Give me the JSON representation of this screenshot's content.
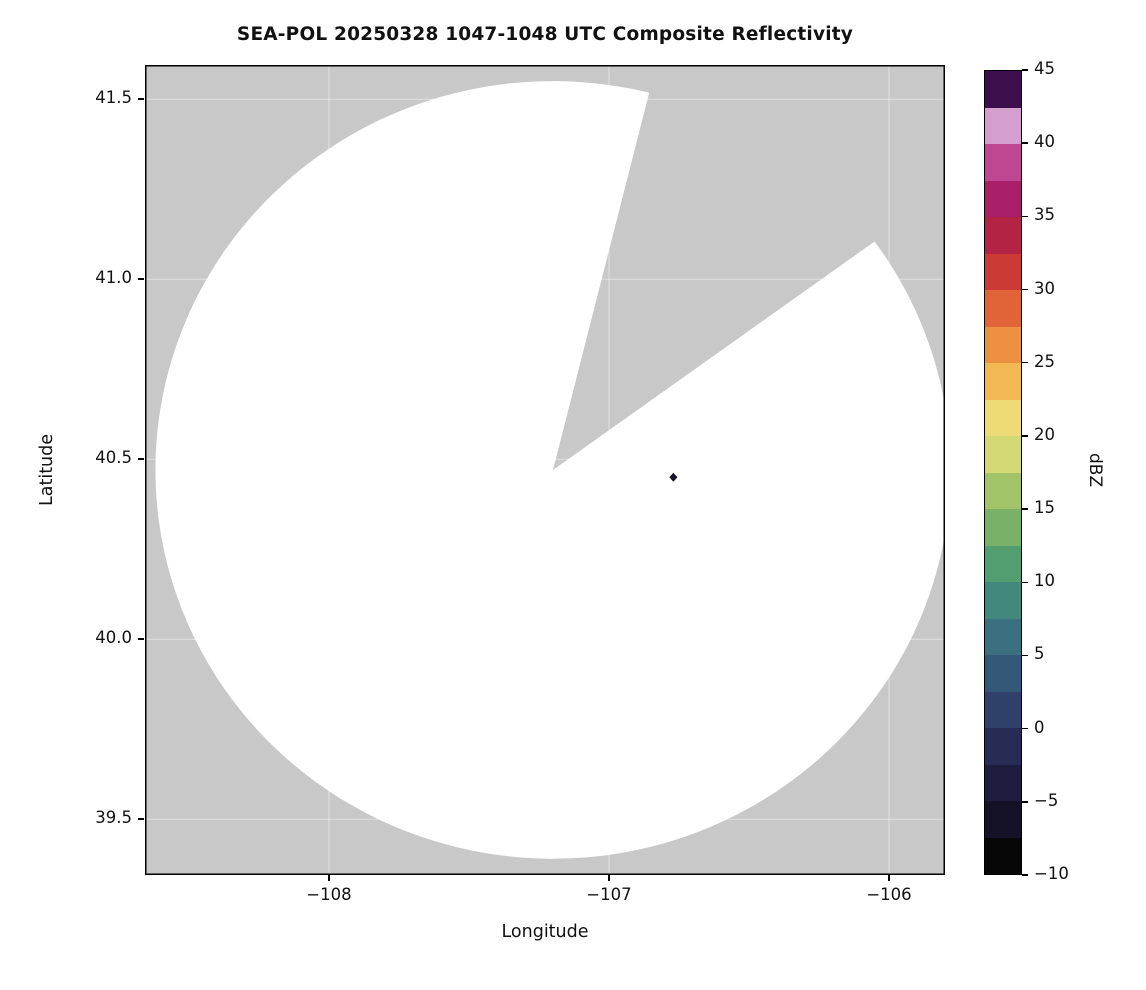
{
  "figure": {
    "title": "SEA-POL 20250328 1047-1048 UTC Composite Reflectivity",
    "xlabel": "Longitude",
    "ylabel": "Latitude",
    "colorbar_label": "dBZ"
  },
  "chart_data": {
    "type": "heatmap",
    "title": "SEA-POL 20250328 1047-1048 UTC Composite Reflectivity",
    "xlabel": "Longitude",
    "ylabel": "Latitude",
    "xlim": [
      -108.657,
      -105.8
    ],
    "ylim": [
      39.345,
      41.595
    ],
    "xticks": [
      -108,
      -107,
      -106
    ],
    "yticks": [
      39.5,
      40.0,
      40.5,
      41.0,
      41.5
    ],
    "grid": true,
    "background_color": "#c8c8c8",
    "coverage": {
      "description": "Radar scan coverage disk rendered white (no echoes above colormap minimum); surrounding masked area gray; wedge-shaped missing sector to the north-northeast",
      "center_lon": -107.2,
      "center_lat": 40.47,
      "radius_deg_lat": 1.08,
      "missing_wedge_azimuth_deg": [
        14,
        54
      ],
      "fill": "#ffffff"
    },
    "echoes": [
      {
        "lon": -106.77,
        "lat": 40.45,
        "color": "#17142a",
        "shape": "diamond",
        "note": "single small dark echo pixel"
      }
    ],
    "colorbar": {
      "label": "dBZ",
      "min": -10,
      "max": 45,
      "ticks": [
        45,
        40,
        35,
        30,
        25,
        20,
        15,
        10,
        5,
        0,
        -5,
        -10
      ],
      "colors_bottom_to_top": [
        "#070708",
        "#151227",
        "#1f1d3e",
        "#282c55",
        "#2f416b",
        "#345878",
        "#3a707f",
        "#42887c",
        "#539e70",
        "#78b167",
        "#a3c369",
        "#d2d975",
        "#eeda76",
        "#f1b854",
        "#ec9042",
        "#e06437",
        "#cc3a36",
        "#b22344",
        "#a81f68",
        "#bf4691",
        "#d49fce",
        "#3c0f4c"
      ]
    }
  }
}
